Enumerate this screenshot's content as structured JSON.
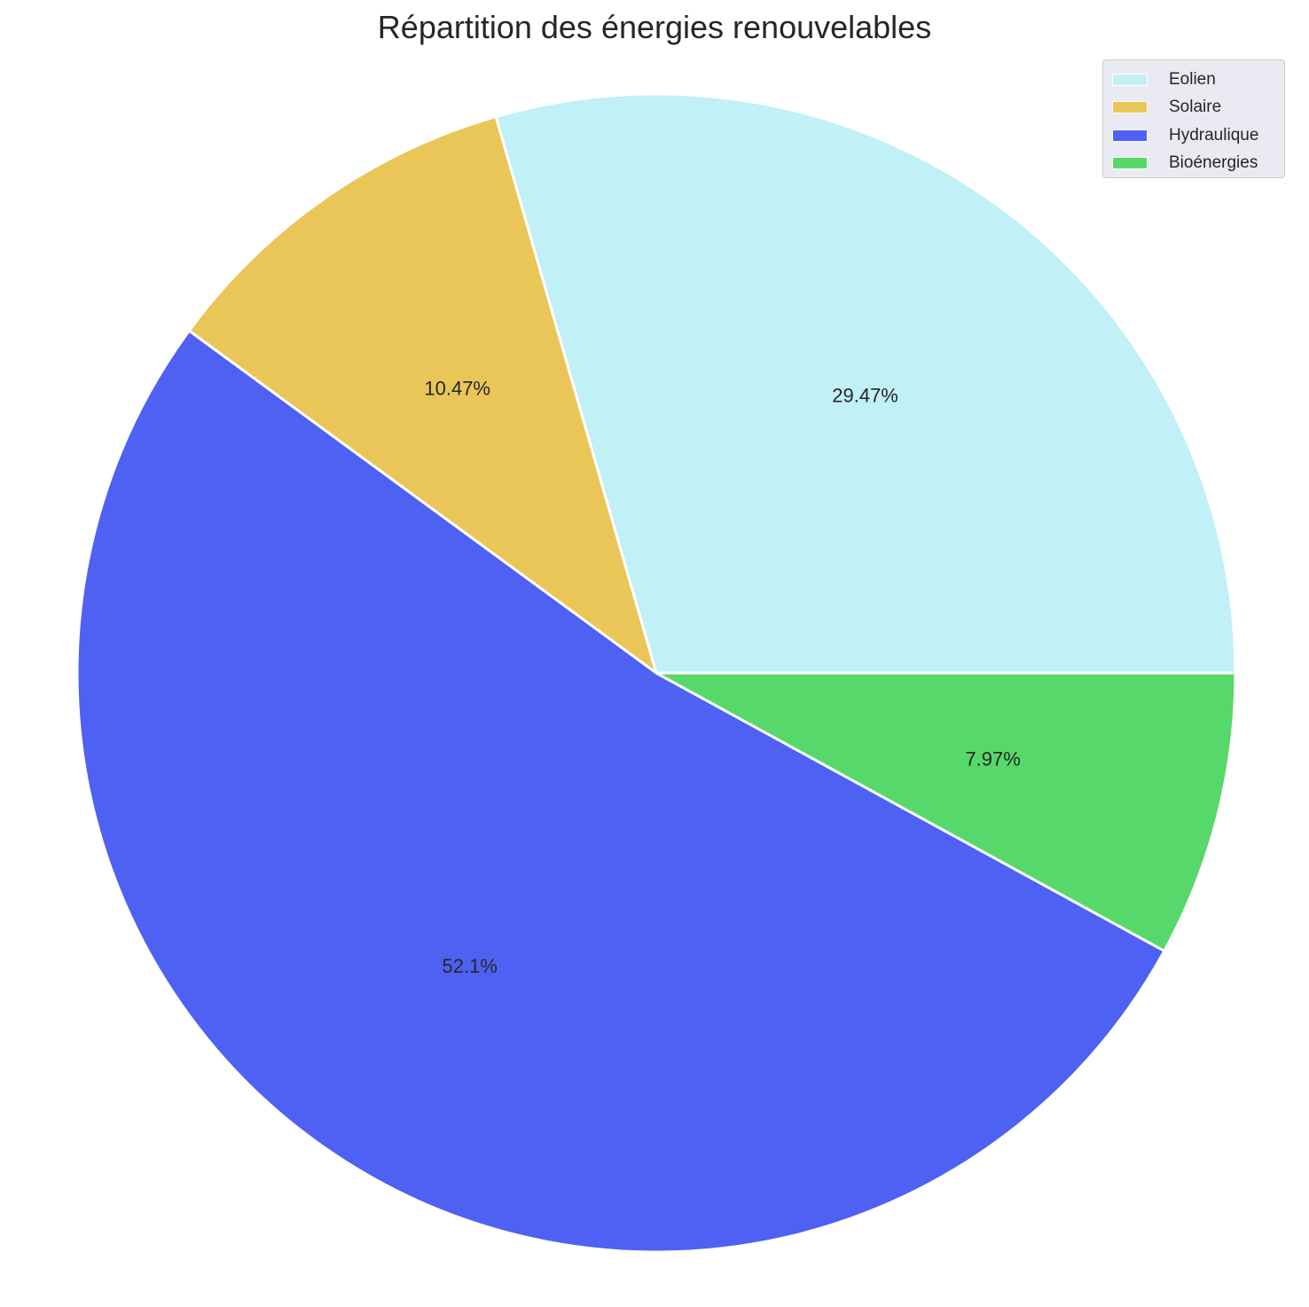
{
  "chart_data": {
    "type": "pie",
    "title": "Répartition des énergies renouvelables",
    "categories": [
      "Eolien",
      "Solaire",
      "Hydraulique",
      "Bioénergies"
    ],
    "values": [
      29.47,
      10.47,
      52.1,
      7.97
    ],
    "labels": [
      "29.47%",
      "10.47%",
      "52.1%",
      "7.97%"
    ],
    "colors": [
      "#c1f0f6",
      "#e9c657",
      "#4f61f3",
      "#57d86b"
    ],
    "start_angle_deg": 0,
    "direction": "counterclockwise",
    "legend_position": "top-right"
  }
}
